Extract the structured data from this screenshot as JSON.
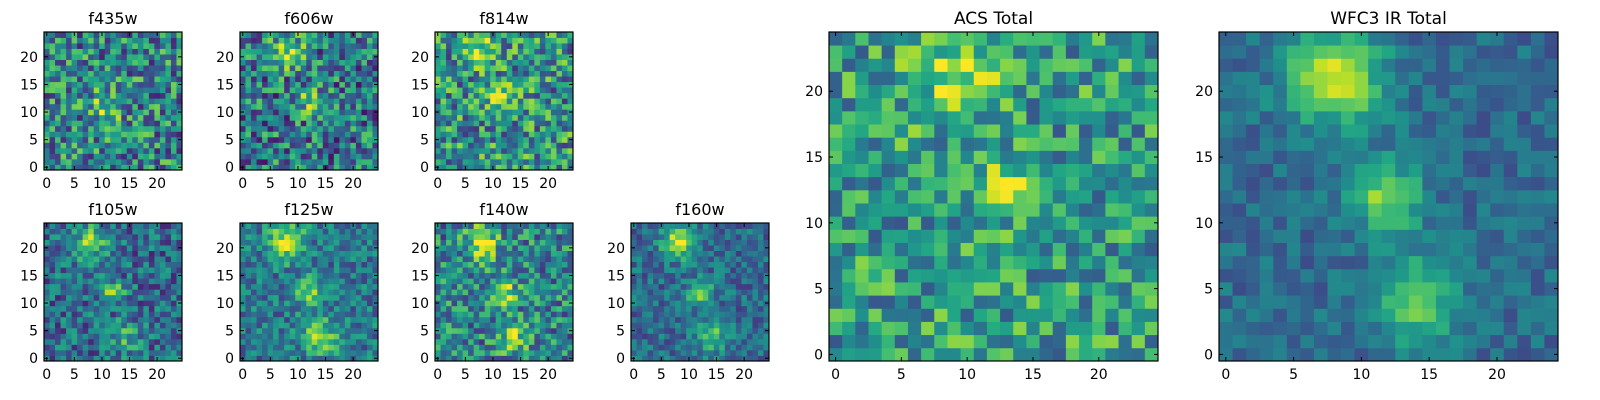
{
  "figure": {
    "panels": [
      {
        "id": "f435w",
        "title": "f435w"
      },
      {
        "id": "f606w",
        "title": "f606w"
      },
      {
        "id": "f814w",
        "title": "f814w"
      },
      {
        "id": "f105w",
        "title": "f105w"
      },
      {
        "id": "f125w",
        "title": "f125w"
      },
      {
        "id": "f140w",
        "title": "f140w"
      },
      {
        "id": "f160w",
        "title": "f160w"
      },
      {
        "id": "acs_total",
        "title": "ACS Total"
      },
      {
        "id": "wfc3_total",
        "title": "WFC3 IR Total"
      }
    ],
    "colormap": [
      "#440154",
      "#3b528b",
      "#21918c",
      "#5ec962",
      "#fde725"
    ]
  },
  "chart_data": [
    {
      "type": "heatmap",
      "title": "f435w",
      "grid": [
        25,
        25
      ],
      "xlim": [
        0,
        24
      ],
      "ylim": [
        0,
        24
      ],
      "xticks": [
        0,
        5,
        10,
        15,
        20
      ],
      "yticks": [
        0,
        5,
        10,
        15,
        20
      ],
      "blobs": [
        {
          "x": 11,
          "y": 11,
          "amp": 0.35,
          "sigma": 2.0
        }
      ],
      "base": 0.45,
      "noise": 0.35
    },
    {
      "type": "heatmap",
      "title": "f606w",
      "grid": [
        25,
        25
      ],
      "xlim": [
        0,
        24
      ],
      "ylim": [
        0,
        24
      ],
      "xticks": [
        0,
        5,
        10,
        15,
        20
      ],
      "yticks": [
        0,
        5,
        10,
        15,
        20
      ],
      "blobs": [
        {
          "x": 8,
          "y": 21,
          "amp": 0.45,
          "sigma": 2.2
        },
        {
          "x": 12,
          "y": 12,
          "amp": 0.25,
          "sigma": 2.0
        }
      ],
      "base": 0.4,
      "noise": 0.35
    },
    {
      "type": "heatmap",
      "title": "f814w",
      "grid": [
        25,
        25
      ],
      "xlim": [
        0,
        24
      ],
      "ylim": [
        0,
        24
      ],
      "xticks": [
        0,
        5,
        10,
        15,
        20
      ],
      "yticks": [
        0,
        5,
        10,
        15,
        20
      ],
      "blobs": [
        {
          "x": 8,
          "y": 21,
          "amp": 0.4,
          "sigma": 2.2
        },
        {
          "x": 12,
          "y": 12,
          "amp": 0.3,
          "sigma": 1.8
        }
      ],
      "base": 0.5,
      "noise": 0.35
    },
    {
      "type": "heatmap",
      "title": "f105w",
      "grid": [
        25,
        25
      ],
      "xlim": [
        0,
        24
      ],
      "ylim": [
        0,
        24
      ],
      "xticks": [
        0,
        5,
        10,
        15,
        20
      ],
      "yticks": [
        0,
        5,
        10,
        15,
        20
      ],
      "blobs": [
        {
          "x": 8,
          "y": 21,
          "amp": 0.5,
          "sigma": 2.0
        },
        {
          "x": 12,
          "y": 12,
          "amp": 0.4,
          "sigma": 1.5
        },
        {
          "x": 14,
          "y": 4,
          "amp": 0.3,
          "sigma": 2.0
        }
      ],
      "base": 0.35,
      "noise": 0.25
    },
    {
      "type": "heatmap",
      "title": "f125w",
      "grid": [
        25,
        25
      ],
      "xlim": [
        0,
        24
      ],
      "ylim": [
        0,
        24
      ],
      "xticks": [
        0,
        5,
        10,
        15,
        20
      ],
      "yticks": [
        0,
        5,
        10,
        15,
        20
      ],
      "blobs": [
        {
          "x": 8,
          "y": 21,
          "amp": 0.55,
          "sigma": 2.2
        },
        {
          "x": 12,
          "y": 12,
          "amp": 0.45,
          "sigma": 1.8
        },
        {
          "x": 14,
          "y": 4,
          "amp": 0.4,
          "sigma": 2.2
        }
      ],
      "base": 0.4,
      "noise": 0.22
    },
    {
      "type": "heatmap",
      "title": "f140w",
      "grid": [
        25,
        25
      ],
      "xlim": [
        0,
        24
      ],
      "ylim": [
        0,
        24
      ],
      "xticks": [
        0,
        5,
        10,
        15,
        20
      ],
      "yticks": [
        0,
        5,
        10,
        15,
        20
      ],
      "blobs": [
        {
          "x": 8,
          "y": 21,
          "amp": 0.5,
          "sigma": 2.0
        },
        {
          "x": 12,
          "y": 12,
          "amp": 0.45,
          "sigma": 1.6
        },
        {
          "x": 14,
          "y": 4,
          "amp": 0.35,
          "sigma": 2.0
        }
      ],
      "base": 0.45,
      "noise": 0.3
    },
    {
      "type": "heatmap",
      "title": "f160w",
      "grid": [
        25,
        25
      ],
      "xlim": [
        0,
        24
      ],
      "ylim": [
        0,
        24
      ],
      "xticks": [
        0,
        5,
        10,
        15,
        20
      ],
      "yticks": [
        0,
        5,
        10,
        15,
        20
      ],
      "blobs": [
        {
          "x": 8,
          "y": 21,
          "amp": 0.6,
          "sigma": 2.0
        },
        {
          "x": 12,
          "y": 12,
          "amp": 0.45,
          "sigma": 1.6
        },
        {
          "x": 14,
          "y": 4,
          "amp": 0.4,
          "sigma": 2.0
        }
      ],
      "base": 0.35,
      "noise": 0.18
    },
    {
      "type": "heatmap",
      "title": "ACS Total",
      "grid": [
        25,
        25
      ],
      "xlim": [
        0,
        24
      ],
      "ylim": [
        0,
        24
      ],
      "xticks": [
        0,
        5,
        10,
        15,
        20
      ],
      "yticks": [
        0,
        5,
        10,
        15,
        20
      ],
      "blobs": [
        {
          "x": 9,
          "y": 21,
          "amp": 0.35,
          "sigma": 2.2
        },
        {
          "x": 13,
          "y": 13,
          "amp": 0.3,
          "sigma": 1.5
        }
      ],
      "base": 0.55,
      "noise": 0.28
    },
    {
      "type": "heatmap",
      "title": "WFC3 IR Total",
      "grid": [
        25,
        25
      ],
      "xlim": [
        0,
        24
      ],
      "ylim": [
        0,
        24
      ],
      "xticks": [
        0,
        5,
        10,
        15,
        20
      ],
      "yticks": [
        0,
        5,
        10,
        15,
        20
      ],
      "blobs": [
        {
          "x": 8,
          "y": 21,
          "amp": 0.6,
          "sigma": 2.5
        },
        {
          "x": 12,
          "y": 12,
          "amp": 0.5,
          "sigma": 1.8
        },
        {
          "x": 14,
          "y": 4,
          "amp": 0.4,
          "sigma": 2.3
        }
      ],
      "base": 0.35,
      "noise": 0.12
    }
  ]
}
